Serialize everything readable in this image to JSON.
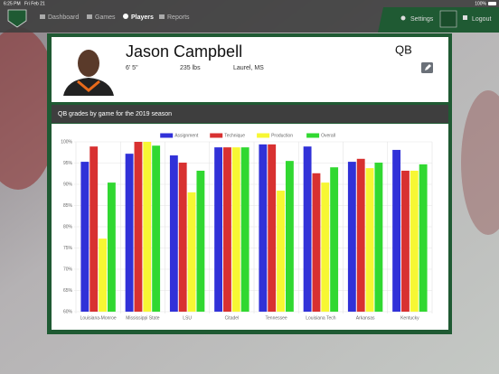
{
  "status_bar": {
    "time": "6:25 PM",
    "date": "Fri Feb 21",
    "battery": "100%"
  },
  "nav": {
    "items": [
      "Dashboard",
      "Games",
      "Players",
      "Reports"
    ],
    "settings": "Settings",
    "logout": "Logout"
  },
  "player": {
    "name": "Jason Campbell",
    "height": "6' 5\"",
    "weight": "235 lbs",
    "hometown": "Laurel, MS",
    "position": "QB"
  },
  "chart_data": {
    "type": "bar",
    "title": "QB grades by game for the 2019 season",
    "categories": [
      "Louisiana-Monroe",
      "Mississippi State",
      "LSU",
      "Citadel",
      "Tennessee",
      "Louisiana Tech",
      "Arkansas",
      "Kentucky"
    ],
    "series": [
      {
        "name": "Assignment",
        "color": "#3131d8",
        "values": [
          95.3,
          97.2,
          96.8,
          98.7,
          99.4,
          98.9,
          95.3,
          98.1
        ]
      },
      {
        "name": "Technique",
        "color": "#d83131",
        "values": [
          98.9,
          100,
          95.1,
          98.7,
          99.4,
          92.6,
          96.0,
          93.2
        ]
      },
      {
        "name": "Production",
        "color": "#f7f733",
        "values": [
          77.2,
          100,
          88.1,
          98.7,
          88.5,
          90.4,
          93.8,
          93.2
        ]
      },
      {
        "name": "Overall",
        "color": "#31d831",
        "values": [
          90.4,
          99.1,
          93.2,
          98.7,
          95.5,
          94.0,
          95.1,
          94.7
        ]
      }
    ],
    "ylim": [
      60,
      100
    ],
    "yticks": [
      {
        "value": 60,
        "label": "60%"
      },
      {
        "value": 65,
        "label": "65%"
      },
      {
        "value": 70,
        "label": "70%"
      },
      {
        "value": 75,
        "label": "75%"
      },
      {
        "value": 80,
        "label": "80%"
      },
      {
        "value": 85,
        "label": "85%"
      },
      {
        "value": 90,
        "label": "90%"
      },
      {
        "value": 95,
        "label": "95%"
      },
      {
        "value": 100,
        "label": "100%"
      }
    ],
    "grid": true,
    "legend": "top"
  }
}
